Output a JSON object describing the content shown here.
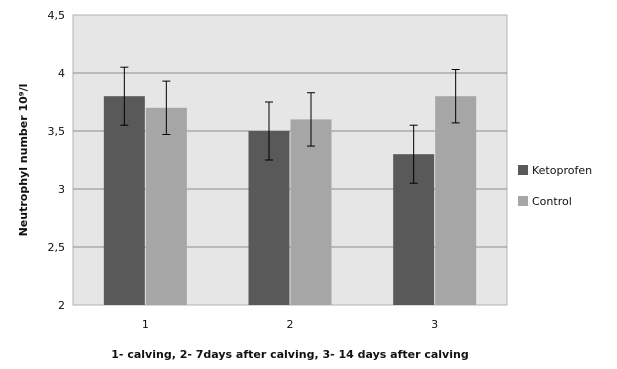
{
  "chart_data": {
    "type": "bar",
    "categories": [
      "1",
      "2",
      "3"
    ],
    "series": [
      {
        "name": "Ketoprofen",
        "values": [
          3.8,
          3.5,
          3.3
        ],
        "errors": [
          0.25,
          0.25,
          0.25
        ],
        "color": "#595959"
      },
      {
        "name": "Control",
        "values": [
          3.7,
          3.6,
          3.8
        ],
        "errors": [
          0.23,
          0.23,
          0.23
        ],
        "color": "#a6a6a6"
      }
    ],
    "xlabel": "1- calving, 2- 7days after calving, 3- 14 days after calving",
    "ylabel": "Neutrophyl number 10⁹/l",
    "ylim": [
      2,
      4.5
    ],
    "yticks": [
      "2",
      "2,5",
      "3",
      "3,5",
      "4",
      "4,5"
    ],
    "grid": true,
    "legend": "right",
    "plot_background": "#e6e6e6",
    "gridline_color": "#8c8c8c"
  }
}
